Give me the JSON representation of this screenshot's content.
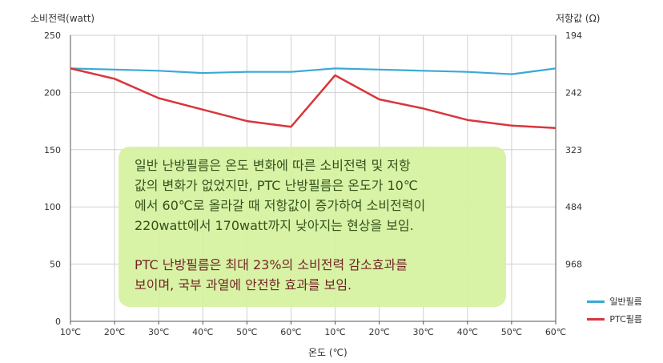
{
  "chart_data": {
    "type": "line",
    "ylabel_left": "소비전력(watt)",
    "ylabel_right": "저항값 (Ω)",
    "xlabel": "온도 (℃)",
    "categories": [
      "10℃",
      "20℃",
      "30℃",
      "40℃",
      "50℃",
      "60℃",
      "10℃",
      "20℃",
      "30℃",
      "40℃",
      "50℃",
      "60℃"
    ],
    "ylim": [
      0,
      250
    ],
    "yticks": [
      0,
      50,
      100,
      150,
      200,
      250
    ],
    "right_tick_labels": [
      "194",
      "242",
      "323",
      "484",
      "968"
    ],
    "grid": true,
    "legend_position": "bottom-right",
    "series": [
      {
        "name": "일반필름",
        "color": "#3aa9d6",
        "values": [
          221,
          220,
          219,
          217,
          218,
          218,
          221,
          220,
          219,
          218,
          216,
          221
        ]
      },
      {
        "name": "PTC필름",
        "color": "#d9363b",
        "values": [
          221,
          212,
          195,
          185,
          175,
          170,
          215,
          194,
          186,
          176,
          171,
          169
        ]
      }
    ]
  },
  "annotation": {
    "paragraph1": "일반 난방필름은 온도 변화에 따른 소비전력 및 저항\n값의 변화가 없었지만,  PTC 난방필름은 온도가 10℃\n에서 60℃로 올라갈 때 저항값이 증가하여 소비전력이\n220watt에서 170watt까지 낮아지는 현상을 보임.",
    "paragraph2": "PTC 난방필름은 최대 23%의 소비전력 감소효과를\n보이며, 국부 과열에 안전한 효과를 보임.",
    "background": "#d6f2a2"
  }
}
